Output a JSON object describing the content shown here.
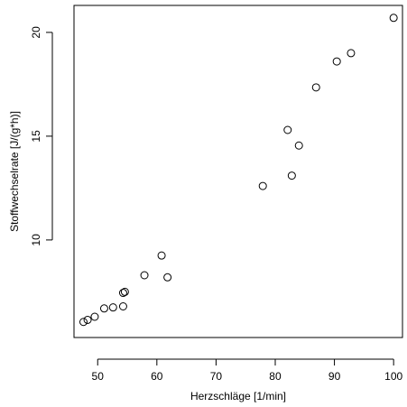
{
  "chart_data": {
    "type": "scatter",
    "xlabel": "Herzschläge [1/min]",
    "ylabel": "Stoffwechselrate [J/(g*h)]",
    "xlim": [
      46.0,
      101.5
    ],
    "ylim": [
      5.3,
      21.3
    ],
    "x_ticks": [
      50,
      60,
      70,
      80,
      90,
      100
    ],
    "y_ticks": [
      10,
      15,
      20
    ],
    "grid": false,
    "legend": "none",
    "marker": "open-circle",
    "colors": {
      "marker": "#000000",
      "axis": "#000000",
      "background": "#ffffff"
    },
    "points": [
      {
        "x": 47.6,
        "y": 6.05
      },
      {
        "x": 48.3,
        "y": 6.15
      },
      {
        "x": 49.5,
        "y": 6.3
      },
      {
        "x": 51.1,
        "y": 6.7
      },
      {
        "x": 52.6,
        "y": 6.75
      },
      {
        "x": 54.3,
        "y": 6.8
      },
      {
        "x": 54.3,
        "y": 7.45
      },
      {
        "x": 54.6,
        "y": 7.5
      },
      {
        "x": 57.9,
        "y": 8.3
      },
      {
        "x": 61.8,
        "y": 8.2
      },
      {
        "x": 60.8,
        "y": 9.25
      },
      {
        "x": 77.9,
        "y": 12.6
      },
      {
        "x": 82.1,
        "y": 15.3
      },
      {
        "x": 82.8,
        "y": 13.1
      },
      {
        "x": 84.0,
        "y": 14.55
      },
      {
        "x": 86.9,
        "y": 17.35
      },
      {
        "x": 90.4,
        "y": 18.6
      },
      {
        "x": 92.8,
        "y": 19.0
      },
      {
        "x": 100.0,
        "y": 20.7
      }
    ]
  }
}
